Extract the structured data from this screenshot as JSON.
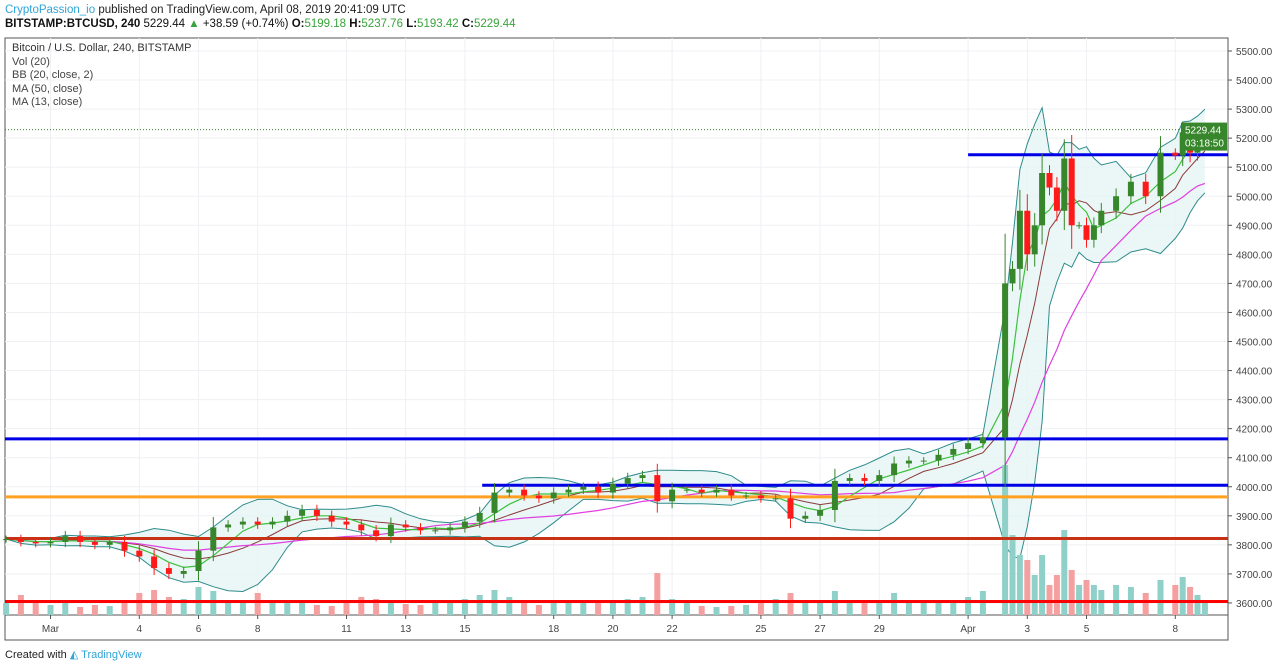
{
  "header": {
    "author": "CryptoPassion_io",
    "published": "published on TradingView.com, April 08, 2019 20:41:09 UTC",
    "symbol": "BITSTAMP:BTCUSD, 240",
    "last": "5229.44",
    "change": "+38.59 (+0.74%)",
    "o_label": "O:",
    "o": "5199.18",
    "h_label": "H:",
    "h": "5237.76",
    "l_label": "L:",
    "l": "5193.42",
    "c_label": "C:",
    "c": "5229.44"
  },
  "legend": [
    "Bitcoin / U.S. Dollar, 240, BITSTAMP",
    "Vol (20)",
    "BB (20, close, 2)",
    "MA (50, close)",
    "MA (13, close)"
  ],
  "footer": {
    "created": "Created with",
    "brand": "TradingView"
  },
  "colors": {
    "up": "#37862b",
    "down": "#ff1a1a",
    "ma13": "#3cc13c",
    "ma50": "#e040e0",
    "bb_basis": "#8b3a3a",
    "bb_band": "#2e8b8b",
    "bb_fill": "#e6f5f5",
    "vol_up": "#8fd0c8",
    "vol_down": "#f4a0a0",
    "level_blue": "#0000e6",
    "level_orange": "#ffa020",
    "level_brown": "#c83214",
    "level_red": "#ff0000",
    "label_bg": "#37862b"
  },
  "chart_data": {
    "type": "candlestick",
    "title": "Bitcoin / U.S. Dollar, 240, BITSTAMP",
    "ylim": [
      3550,
      5550
    ],
    "y_ticks": [
      "3600.00",
      "3700.00",
      "3800.00",
      "3900.00",
      "4000.00",
      "4100.00",
      "4200.00",
      "4300.00",
      "4400.00",
      "4500.00",
      "4600.00",
      "4700.00",
      "4800.00",
      "4900.00",
      "5000.00",
      "5100.00",
      "5200.00",
      "5300.00",
      "5400.00",
      "5500.00"
    ],
    "x_ticks": [
      {
        "label": "Mar",
        "date": "2019-03-01"
      },
      {
        "label": "4",
        "date": "2019-03-04"
      },
      {
        "label": "6",
        "date": "2019-03-06"
      },
      {
        "label": "8",
        "date": "2019-03-08"
      },
      {
        "label": "11",
        "date": "2019-03-11"
      },
      {
        "label": "13",
        "date": "2019-03-13"
      },
      {
        "label": "15",
        "date": "2019-03-15"
      },
      {
        "label": "18",
        "date": "2019-03-18"
      },
      {
        "label": "20",
        "date": "2019-03-20"
      },
      {
        "label": "22",
        "date": "2019-03-22"
      },
      {
        "label": "25",
        "date": "2019-03-25"
      },
      {
        "label": "27",
        "date": "2019-03-27"
      },
      {
        "label": "29",
        "date": "2019-03-29"
      },
      {
        "label": "Apr",
        "date": "2019-04-01"
      },
      {
        "label": "3",
        "date": "2019-04-03"
      },
      {
        "label": "5",
        "date": "2019-04-05"
      },
      {
        "label": "8",
        "date": "2019-04-08"
      }
    ],
    "last_price": "5229.44",
    "countdown": "03:18:50",
    "levels": [
      {
        "price": 4165,
        "color": "level_blue",
        "from": "2019-02-27T00"
      },
      {
        "price": 4005,
        "color": "level_blue",
        "from": "2019-03-15T14"
      },
      {
        "price": 3965,
        "color": "level_orange",
        "from": "2019-02-27T00"
      },
      {
        "price": 3822,
        "color": "level_brown",
        "from": "2019-02-27T00"
      },
      {
        "price": 3605,
        "color": "level_red",
        "from": "2019-02-27T00"
      },
      {
        "price": 5143,
        "color": "level_blue",
        "from": "2019-04-01T00"
      }
    ],
    "closes": [
      [
        "2019-02-27T12",
        3820,
        12
      ],
      [
        "2019-02-28T00",
        3810,
        20
      ],
      [
        "2019-02-28T12",
        3805,
        15
      ],
      [
        "2019-03-01T00",
        3810,
        10
      ],
      [
        "2019-03-01T12",
        3830,
        12
      ],
      [
        "2019-03-02T00",
        3810,
        8
      ],
      [
        "2019-03-02T12",
        3800,
        10
      ],
      [
        "2019-03-03T00",
        3810,
        9
      ],
      [
        "2019-03-03T12",
        3780,
        15
      ],
      [
        "2019-03-04T00",
        3760,
        22
      ],
      [
        "2019-03-04T12",
        3720,
        25
      ],
      [
        "2019-03-05T00",
        3700,
        18
      ],
      [
        "2019-03-05T12",
        3710,
        16
      ],
      [
        "2019-03-06T00",
        3780,
        28
      ],
      [
        "2019-03-06T12",
        3860,
        24
      ],
      [
        "2019-03-07T00",
        3870,
        14
      ],
      [
        "2019-03-07T12",
        3880,
        12
      ],
      [
        "2019-03-08T00",
        3870,
        22
      ],
      [
        "2019-03-08T12",
        3880,
        15
      ],
      [
        "2019-03-09T00",
        3900,
        12
      ],
      [
        "2019-03-09T12",
        3920,
        14
      ],
      [
        "2019-03-10T00",
        3900,
        10
      ],
      [
        "2019-03-10T12",
        3880,
        9
      ],
      [
        "2019-03-11T00",
        3870,
        12
      ],
      [
        "2019-03-11T12",
        3850,
        18
      ],
      [
        "2019-03-12T00",
        3830,
        16
      ],
      [
        "2019-03-12T12",
        3870,
        14
      ],
      [
        "2019-03-13T00",
        3860,
        11
      ],
      [
        "2019-03-13T12",
        3850,
        10
      ],
      [
        "2019-03-14T00",
        3850,
        12
      ],
      [
        "2019-03-14T12",
        3860,
        14
      ],
      [
        "2019-03-15T00",
        3880,
        16
      ],
      [
        "2019-03-15T12",
        3910,
        20
      ],
      [
        "2019-03-16T00",
        3980,
        25
      ],
      [
        "2019-03-16T12",
        3990,
        18
      ],
      [
        "2019-03-17T00",
        3970,
        12
      ],
      [
        "2019-03-17T12",
        3960,
        10
      ],
      [
        "2019-03-18T00",
        3980,
        14
      ],
      [
        "2019-03-18T12",
        3990,
        12
      ],
      [
        "2019-03-19T00",
        4000,
        13
      ],
      [
        "2019-03-19T12",
        3980,
        12
      ],
      [
        "2019-03-20T00",
        4010,
        14
      ],
      [
        "2019-03-20T12",
        4030,
        16
      ],
      [
        "2019-03-21T00",
        4040,
        18
      ],
      [
        "2019-03-21T12",
        3950,
        42
      ],
      [
        "2019-03-22T00",
        3990,
        16
      ],
      [
        "2019-03-22T12",
        3990,
        12
      ],
      [
        "2019-03-23T00",
        3980,
        9
      ],
      [
        "2019-03-23T12",
        3990,
        8
      ],
      [
        "2019-03-24T00",
        3970,
        9
      ],
      [
        "2019-03-24T12",
        3970,
        10
      ],
      [
        "2019-03-25T00",
        3960,
        14
      ],
      [
        "2019-03-25T12",
        3960,
        16
      ],
      [
        "2019-03-26T00",
        3890,
        22
      ],
      [
        "2019-03-26T12",
        3900,
        14
      ],
      [
        "2019-03-27T00",
        3920,
        15
      ],
      [
        "2019-03-27T12",
        4020,
        24
      ],
      [
        "2019-03-28T00",
        4030,
        14
      ],
      [
        "2019-03-28T12",
        4020,
        12
      ],
      [
        "2019-03-29T00",
        4040,
        15
      ],
      [
        "2019-03-29T12",
        4080,
        22
      ],
      [
        "2019-03-30T00",
        4090,
        14
      ],
      [
        "2019-03-30T12",
        4090,
        12
      ],
      [
        "2019-03-31T00",
        4110,
        12
      ],
      [
        "2019-03-31T12",
        4130,
        12
      ],
      [
        "2019-04-01T00",
        4150,
        18
      ],
      [
        "2019-04-01T12",
        4170,
        24
      ],
      [
        "2019-04-02T06",
        4700,
        150
      ],
      [
        "2019-04-02T12",
        4750,
        80
      ],
      [
        "2019-04-02T18",
        4950,
        60
      ],
      [
        "2019-04-03T00",
        4800,
        55
      ],
      [
        "2019-04-03T06",
        4900,
        40
      ],
      [
        "2019-04-03T12",
        5080,
        60
      ],
      [
        "2019-04-03T18",
        5030,
        30
      ],
      [
        "2019-04-04T00",
        4950,
        40
      ],
      [
        "2019-04-04T06",
        5130,
        85
      ],
      [
        "2019-04-04T12",
        4900,
        45
      ],
      [
        "2019-04-04T18",
        4900,
        30
      ],
      [
        "2019-04-05T00",
        4850,
        35
      ],
      [
        "2019-04-05T06",
        4900,
        30
      ],
      [
        "2019-04-05T12",
        4950,
        25
      ],
      [
        "2019-04-06T00",
        5000,
        30
      ],
      [
        "2019-04-06T12",
        5050,
        28
      ],
      [
        "2019-04-07T00",
        5000,
        22
      ],
      [
        "2019-04-07T12",
        5150,
        35
      ],
      [
        "2019-04-08T00",
        5140,
        30
      ],
      [
        "2019-04-08T06",
        5220,
        38
      ],
      [
        "2019-04-08T12",
        5150,
        28
      ],
      [
        "2019-04-08T18",
        5200,
        20
      ],
      [
        "2019-04-09T00",
        5229.44,
        12
      ]
    ]
  }
}
